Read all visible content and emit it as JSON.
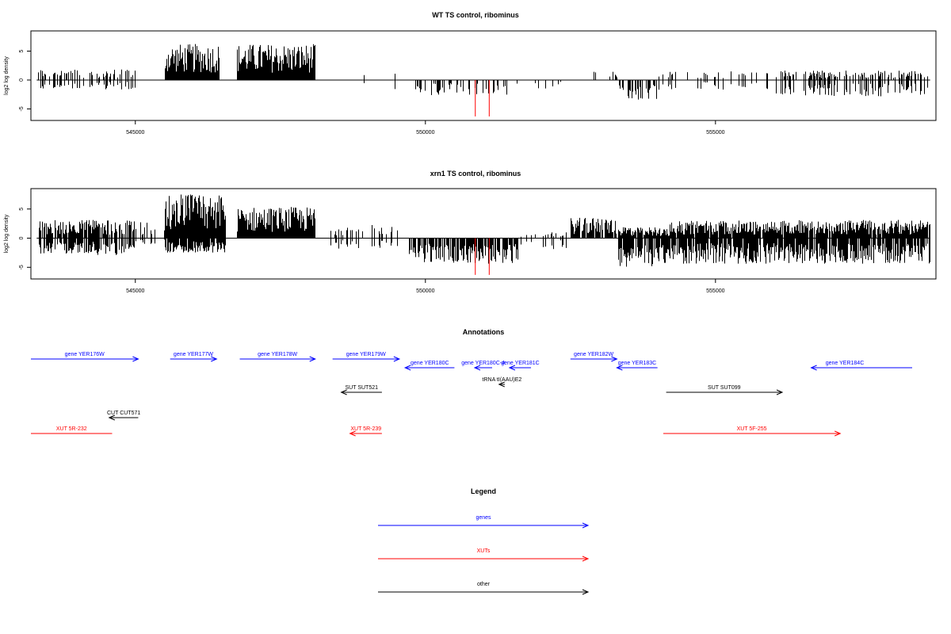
{
  "chart_data": [
    {
      "type": "bar",
      "title": "WT TS control, ribominus",
      "ylabel": "log2 log density",
      "xlim": [
        543200,
        558800
      ],
      "ylim": [
        -7,
        8.5
      ],
      "yticks": [
        -5,
        0,
        5
      ],
      "xticks": [
        545000,
        550000,
        555000
      ],
      "xtick_labels": [
        "545000",
        "550000",
        "555000"
      ],
      "ytick_labels": [
        "-5",
        "0",
        "5"
      ],
      "grid": false,
      "colors": {
        "bars": "#000000",
        "highlight": "#ff0000"
      },
      "highlight_bars": [
        {
          "x": 550860,
          "value": -6.3
        },
        {
          "x": 551100,
          "value": -6.3
        }
      ],
      "segments": [
        {
          "start": 543300,
          "end": 545000,
          "pos": 1.5,
          "neg": -1.3,
          "density": 0.35
        },
        {
          "start": 545500,
          "end": 546450,
          "pos": 5.0,
          "neg": 0,
          "density": 1.0
        },
        {
          "start": 546750,
          "end": 548100,
          "pos": 5.0,
          "neg": 0,
          "density": 1.0
        },
        {
          "start": 548300,
          "end": 549600,
          "pos": 0.9,
          "neg": -1.5,
          "density": 0.06
        },
        {
          "start": 549800,
          "end": 551500,
          "pos": 0,
          "neg": -2.2,
          "density": 0.25
        },
        {
          "start": 551500,
          "end": 552600,
          "pos": 0,
          "neg": -1.2,
          "density": 0.08
        },
        {
          "start": 552600,
          "end": 553300,
          "pos": 1.2,
          "neg": 0,
          "density": 0.1
        },
        {
          "start": 553300,
          "end": 554000,
          "pos": 0,
          "neg": -2.8,
          "density": 0.6
        },
        {
          "start": 554000,
          "end": 556000,
          "pos": 1.2,
          "neg": -1.4,
          "density": 0.15
        },
        {
          "start": 556000,
          "end": 558700,
          "pos": 1.3,
          "neg": -2.3,
          "density": 0.4
        }
      ]
    },
    {
      "type": "bar",
      "title": "xrn1 TS control, ribominus",
      "ylabel": "log2 log density",
      "xlim": [
        543200,
        558800
      ],
      "ylim": [
        -7,
        8.5
      ],
      "yticks": [
        -5,
        0,
        5
      ],
      "xticks": [
        545000,
        550000,
        555000
      ],
      "xtick_labels": [
        "545000",
        "550000",
        "555000"
      ],
      "ytick_labels": [
        "-5",
        "0",
        "5"
      ],
      "grid": false,
      "colors": {
        "bars": "#000000",
        "highlight": "#ff0000"
      },
      "highlight_bars": [
        {
          "x": 550860,
          "value": -6.3
        },
        {
          "x": 551100,
          "value": -6.3
        }
      ],
      "segments": [
        {
          "start": 543300,
          "end": 545000,
          "pos": 2.5,
          "neg": -2.3,
          "density": 0.8
        },
        {
          "start": 545000,
          "end": 545500,
          "pos": 2.2,
          "neg": -0.8,
          "density": 0.3
        },
        {
          "start": 545500,
          "end": 546550,
          "pos": 6.0,
          "neg": -2.0,
          "density": 1.0
        },
        {
          "start": 546750,
          "end": 548100,
          "pos": 4.3,
          "neg": 0,
          "density": 1.0
        },
        {
          "start": 548300,
          "end": 549600,
          "pos": 1.8,
          "neg": -1.5,
          "density": 0.25
        },
        {
          "start": 549700,
          "end": 551600,
          "pos": 0,
          "neg": -3.5,
          "density": 0.9
        },
        {
          "start": 551600,
          "end": 552500,
          "pos": 0.8,
          "neg": -1.5,
          "density": 0.2
        },
        {
          "start": 552500,
          "end": 553300,
          "pos": 2.8,
          "neg": 0,
          "density": 0.85
        },
        {
          "start": 553300,
          "end": 554200,
          "pos": 1.5,
          "neg": -4.0,
          "density": 0.95
        },
        {
          "start": 554200,
          "end": 558700,
          "pos": 2.5,
          "neg": -3.5,
          "density": 0.95
        }
      ]
    }
  ],
  "annotations": {
    "title": "Annotations",
    "items": [
      {
        "label": "gene YER176W",
        "start": 543150,
        "end": 545050,
        "dir": "right",
        "row": 0,
        "color": "#0000ff"
      },
      {
        "label": "gene YER177W",
        "start": 545600,
        "end": 546400,
        "dir": "right",
        "row": 0,
        "color": "#0000ff"
      },
      {
        "label": "gene YER178W",
        "start": 546800,
        "end": 548100,
        "dir": "right",
        "row": 0,
        "color": "#0000ff"
      },
      {
        "label": "gene YER179W",
        "start": 548400,
        "end": 549550,
        "dir": "right",
        "row": 0,
        "color": "#0000ff"
      },
      {
        "label": "gene YER180C",
        "start": 549650,
        "end": 550500,
        "dir": "left",
        "row": 1,
        "color": "#0000ff"
      },
      {
        "label": "gene YER180C-A",
        "start": 550850,
        "end": 551150,
        "dir": "left",
        "row": 1,
        "color": "#0000ff"
      },
      {
        "label": "gene YER181C",
        "start": 551450,
        "end": 551820,
        "dir": "left",
        "row": 1,
        "color": "#0000ff"
      },
      {
        "label": "gene YER182W",
        "start": 552500,
        "end": 553300,
        "dir": "right",
        "row": 0,
        "color": "#0000ff"
      },
      {
        "label": "gene YER183C",
        "start": 553300,
        "end": 554000,
        "dir": "left",
        "row": 1,
        "color": "#0000ff"
      },
      {
        "label": "gene YER184C",
        "start": 556650,
        "end": 559000,
        "dir": "left",
        "row": 1,
        "color": "#0000ff"
      },
      {
        "label": "tRNA tI(AAU)E2",
        "start": 551270,
        "end": 551370,
        "dir": "left",
        "row": 2,
        "color": "#000000"
      },
      {
        "label": "SUT SUT521",
        "start": 548550,
        "end": 549250,
        "dir": "left",
        "row": 3,
        "color": "#000000"
      },
      {
        "label": "SUT SUT099",
        "start": 554150,
        "end": 556150,
        "dir": "right",
        "row": 3,
        "color": "#000000"
      },
      {
        "label": "CUT CUT571",
        "start": 544550,
        "end": 545050,
        "dir": "left",
        "row": 4,
        "color": "#000000"
      },
      {
        "label": "XUT 5R-232",
        "start": 543150,
        "end": 544600,
        "dir": "none",
        "row": 5,
        "color": "#ff0000"
      },
      {
        "label": "XUT 5R-239",
        "start": 548700,
        "end": 549250,
        "dir": "left",
        "row": 5,
        "color": "#ff0000"
      },
      {
        "label": "XUT 5F-255",
        "start": 554100,
        "end": 557150,
        "dir": "right",
        "row": 5,
        "color": "#ff0000"
      }
    ]
  },
  "legend": {
    "title": "Legend",
    "items": [
      {
        "label": "genes",
        "color": "#0000ff"
      },
      {
        "label": "XUTs",
        "color": "#ff0000"
      },
      {
        "label": "other",
        "color": "#000000"
      }
    ]
  }
}
